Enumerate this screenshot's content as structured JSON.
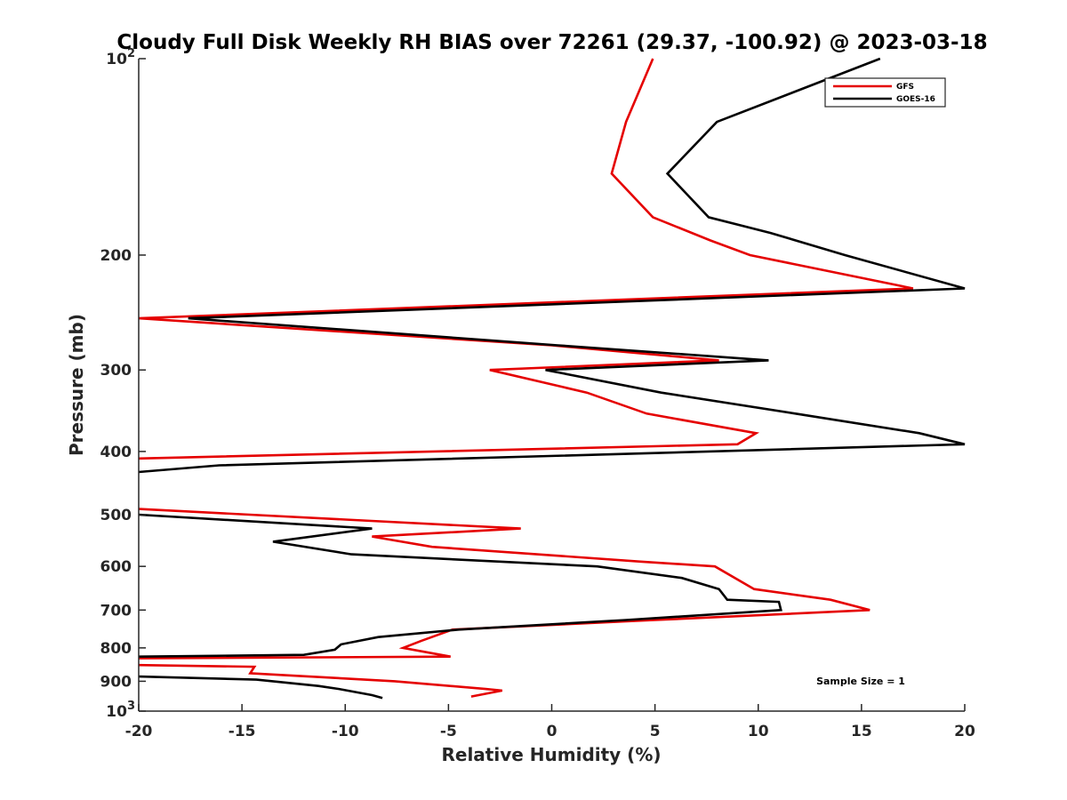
{
  "chart_data": {
    "type": "line",
    "title": "Cloudy Full Disk Weekly RH BIAS over 72261 (29.37, -100.92) @ 2023-03-18",
    "xlabel": "Relative Humidity (%)",
    "ylabel": "Pressure (mb)",
    "xlim": [
      -20,
      20
    ],
    "ylim": [
      100,
      1000
    ],
    "y_scale": "log",
    "y_reversed": true,
    "grid": false,
    "legend_position": "top-right",
    "x_ticks": [
      -20,
      -15,
      -10,
      -5,
      0,
      5,
      10,
      15,
      20
    ],
    "x_tick_labels": [
      "-20",
      "-15",
      "-10",
      "-5",
      "0",
      "5",
      "10",
      "15",
      "20"
    ],
    "y_ticks": [
      100,
      200,
      300,
      400,
      500,
      600,
      700,
      800,
      900,
      1000
    ],
    "y_tick_labels": [
      {
        "base": "10",
        "exp": "2"
      },
      {
        "base": "200",
        "exp": ""
      },
      {
        "base": "300",
        "exp": ""
      },
      {
        "base": "400",
        "exp": ""
      },
      {
        "base": "500",
        "exp": ""
      },
      {
        "base": "600",
        "exp": ""
      },
      {
        "base": "700",
        "exp": ""
      },
      {
        "base": "800",
        "exp": ""
      },
      {
        "base": "900",
        "exp": ""
      },
      {
        "base": "10",
        "exp": "3"
      }
    ],
    "annotation": "Sample Size = 1",
    "series": [
      {
        "name": "GFS",
        "color": "#e50000",
        "segments": [
          [
            [
              4.9,
              100
            ],
            [
              3.6,
              125
            ],
            [
              2.9,
              150
            ],
            [
              4.9,
              175
            ],
            [
              7.7,
              190
            ],
            [
              9.6,
              200
            ],
            [
              17.5,
              225
            ],
            [
              -20,
              250
            ],
            [
              0,
              275
            ],
            [
              8.1,
              290
            ],
            [
              -3.0,
              300
            ],
            [
              1.7,
              325
            ],
            [
              4.6,
              350
            ],
            [
              9.9,
              375
            ],
            [
              9.0,
              390
            ],
            [
              -20,
              410
            ]
          ],
          [
            [
              -20,
              490
            ],
            [
              -1.5,
              525
            ],
            [
              -8.7,
              540
            ],
            [
              -5.8,
              560
            ],
            [
              4.3,
              590
            ],
            [
              7.9,
              600
            ],
            [
              9.8,
              650
            ],
            [
              13.5,
              675
            ],
            [
              15.4,
              700
            ],
            [
              5.0,
              725
            ],
            [
              -4.8,
              750
            ],
            [
              -6.3,
              780
            ],
            [
              -7.2,
              800
            ],
            [
              -4.9,
              825
            ],
            [
              -20,
              830
            ]
          ],
          [
            [
              -20,
              850
            ],
            [
              -14.4,
              855
            ],
            [
              -14.6,
              875
            ],
            [
              -7.6,
              900
            ],
            [
              -3.2,
              925
            ],
            [
              -2.4,
              930
            ],
            [
              -3.9,
              950
            ]
          ]
        ]
      },
      {
        "name": "GOES-16",
        "color": "#000000",
        "segments": [
          [
            [
              15.9,
              100
            ],
            [
              8.0,
              125
            ],
            [
              5.6,
              150
            ],
            [
              7.6,
              175
            ],
            [
              10.6,
              185
            ],
            [
              14.2,
              200
            ],
            [
              20,
              225
            ],
            [
              -17.6,
              250
            ],
            [
              0.3,
              275
            ],
            [
              10.5,
              290
            ],
            [
              -0.3,
              300
            ],
            [
              5.3,
              325
            ],
            [
              11.8,
              350
            ],
            [
              17.8,
              375
            ],
            [
              20,
              390
            ],
            [
              -16.1,
              420
            ],
            [
              -20,
              430
            ]
          ],
          [
            [
              -20,
              500
            ],
            [
              -8.7,
              525
            ],
            [
              -13.5,
              550
            ],
            [
              -9.7,
              575
            ],
            [
              2.2,
              600
            ],
            [
              6.3,
              625
            ],
            [
              8.1,
              650
            ],
            [
              8.5,
              675
            ],
            [
              11.0,
              680
            ],
            [
              11.1,
              700
            ],
            [
              3.6,
              725
            ],
            [
              -4.5,
              750
            ],
            [
              -8.4,
              770
            ],
            [
              -10.2,
              790
            ],
            [
              -10.5,
              805
            ],
            [
              -12.0,
              820
            ],
            [
              -20,
              825
            ]
          ],
          [
            [
              -20,
              885
            ],
            [
              -14.3,
              895
            ],
            [
              -11.3,
              915
            ],
            [
              -10.3,
              925
            ],
            [
              -8.7,
              945
            ],
            [
              -8.2,
              955
            ]
          ]
        ]
      }
    ]
  }
}
